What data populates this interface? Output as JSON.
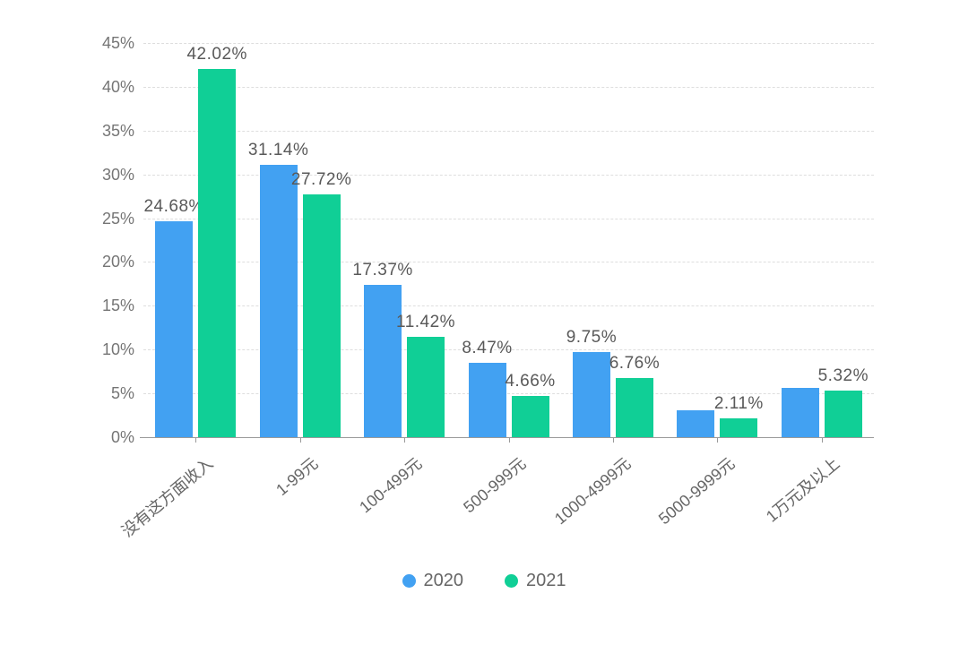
{
  "chart_data": {
    "type": "bar",
    "title": "",
    "xlabel": "",
    "ylabel": "",
    "categories": [
      "没有这方面收入",
      "1-99元",
      "100-499元",
      "500-999元",
      "1000-4999元",
      "5000-9999元",
      "1万元及以上"
    ],
    "series": [
      {
        "name": "2020",
        "color": "#42a1f2",
        "values": [
          24.68,
          31.14,
          17.37,
          8.47,
          9.75,
          3.1,
          5.6
        ],
        "labels": [
          "24.68%",
          "31.14%",
          "17.37%",
          "8.47%",
          "9.75%",
          "",
          ""
        ]
      },
      {
        "name": "2021",
        "color": "#10cf96",
        "values": [
          42.02,
          27.72,
          11.42,
          4.66,
          6.76,
          2.11,
          5.32
        ],
        "labels": [
          "42.02%",
          "27.72%",
          "11.42%",
          "4.66%",
          "6.76%",
          "2.11%",
          "5.32%"
        ]
      }
    ],
    "ylim": [
      0,
      45
    ],
    "ytick_step": 5,
    "ytick_labels": [
      "0%",
      "5%",
      "10%",
      "15%",
      "20%",
      "25%",
      "30%",
      "35%",
      "40%",
      "45%"
    ],
    "grid": "horizontal-dashed",
    "legend_position": "bottom",
    "legend": [
      "2020",
      "2021"
    ]
  },
  "colors": {
    "series_2020": "#42a1f2",
    "series_2021": "#10cf96",
    "axis_text": "#757575",
    "value_label_text": "#595959",
    "gridline": "#dedede",
    "axis_line": "#9a9a9a",
    "background": "#ffffff"
  }
}
